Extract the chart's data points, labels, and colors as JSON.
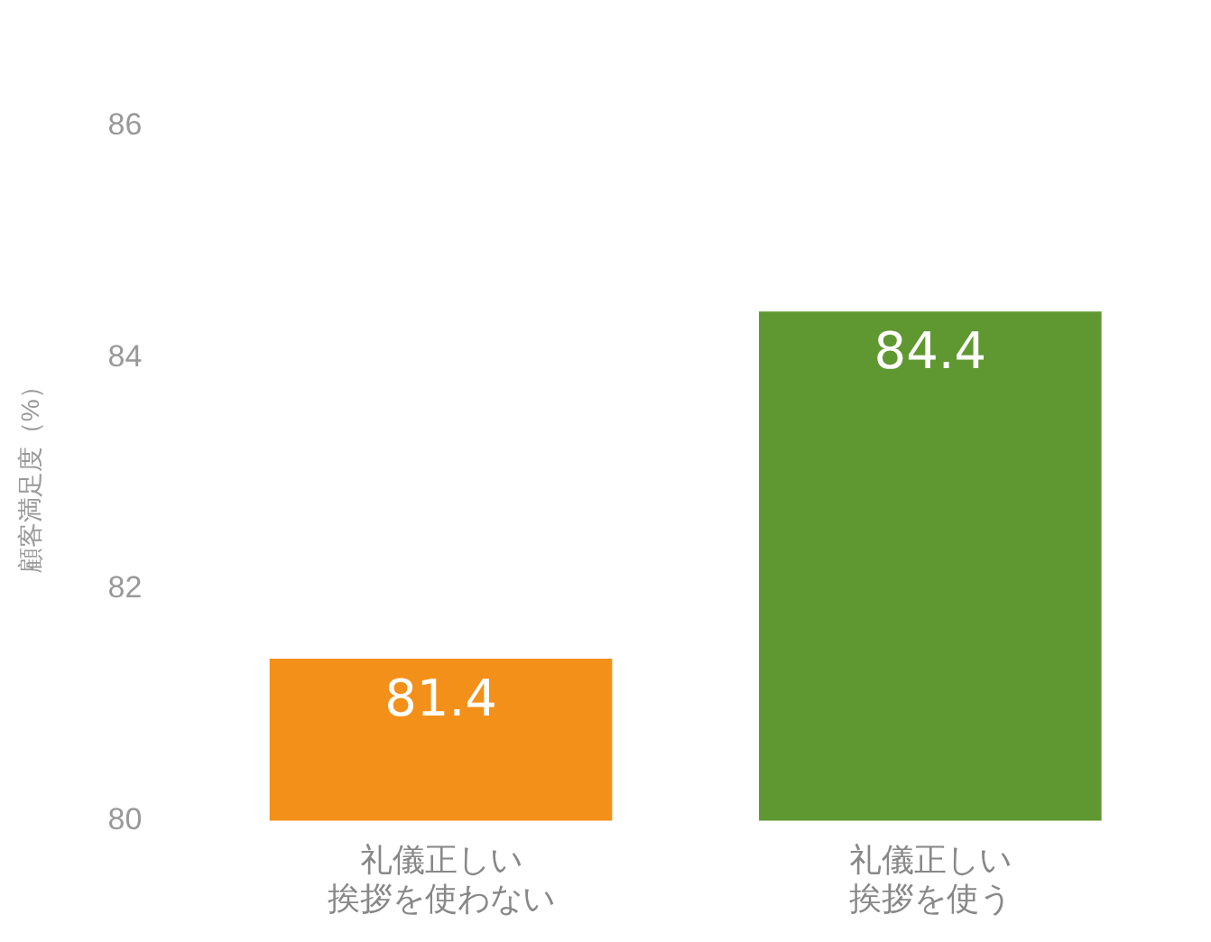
{
  "chart_data": {
    "type": "bar",
    "ylabel": "顧客満足度（%）",
    "categories": [
      "礼儀正しい挨拶を使わない",
      "礼儀正しい挨拶を使う"
    ],
    "values": [
      81.4,
      84.4
    ],
    "colors": [
      "#f39019",
      "#5f9831"
    ],
    "ylim": [
      80,
      86
    ],
    "yticks": [
      80,
      82,
      84,
      86
    ],
    "grid": false,
    "data_labels": true,
    "legend": false
  }
}
